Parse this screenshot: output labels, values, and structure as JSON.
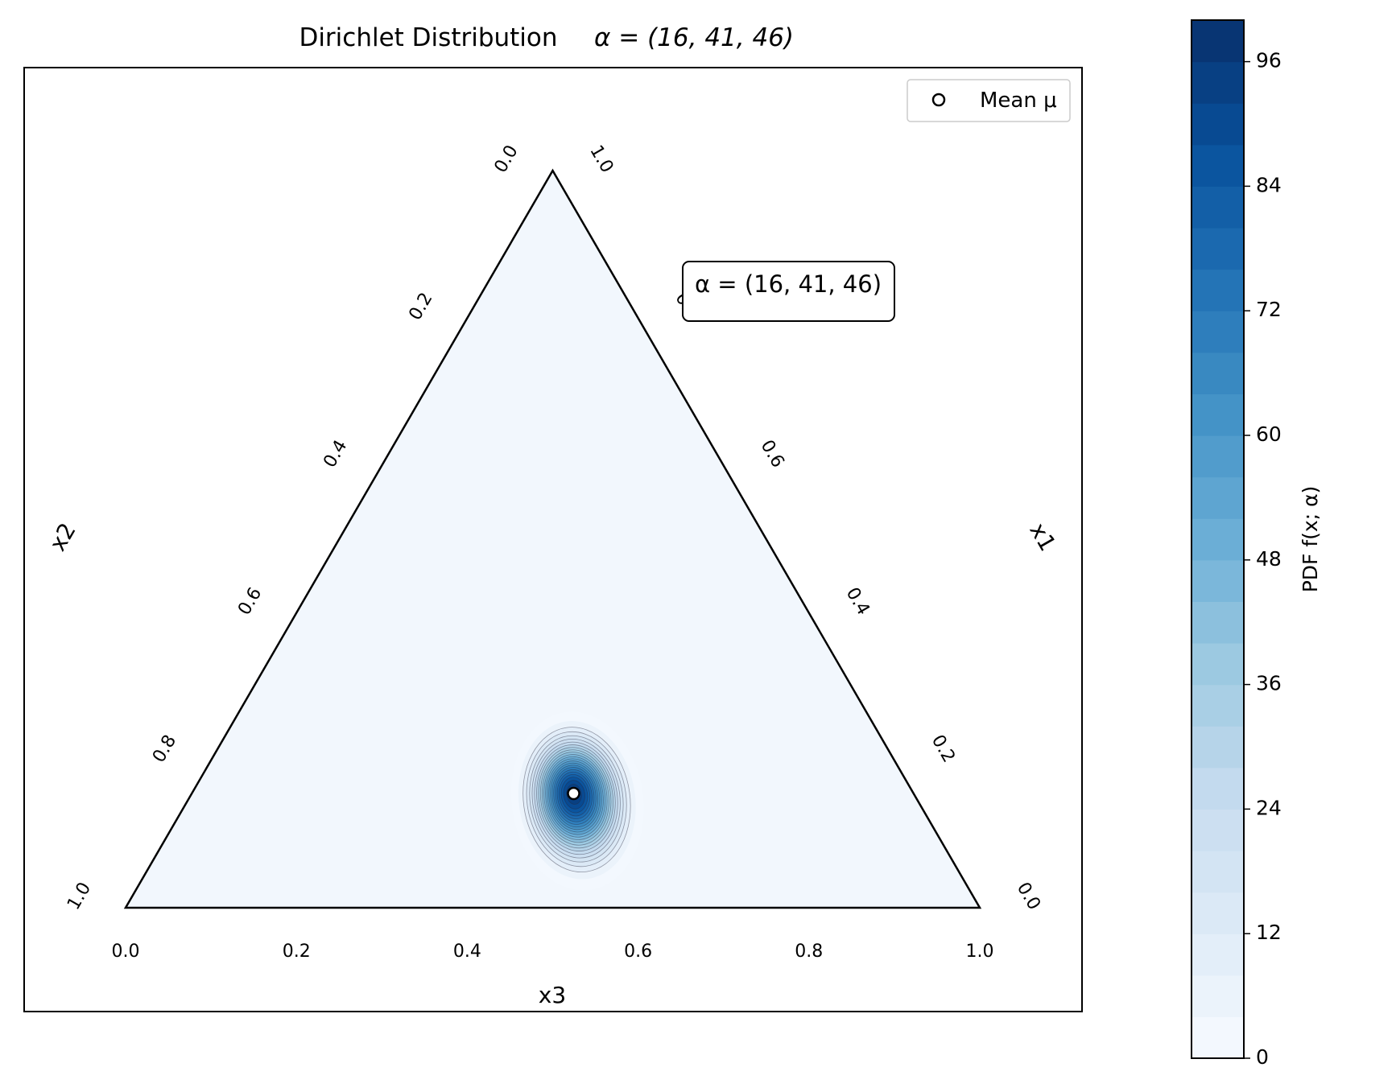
{
  "chart_data": {
    "type": "heatmap",
    "title": "Dirichlet Distribution",
    "title_math": "α = (16, 41, 46)",
    "alpha": [
      16,
      41,
      46
    ],
    "mean": [
      0.155,
      0.398,
      0.447
    ],
    "axes": {
      "bottom": {
        "label": "x3",
        "ticks": [
          "0.0",
          "0.2",
          "0.4",
          "0.6",
          "0.8",
          "1.0"
        ]
      },
      "left": {
        "label": "x2",
        "ticks": [
          "0.0",
          "0.2",
          "0.4",
          "0.6",
          "0.8",
          "1.0"
        ]
      },
      "right": {
        "label": "x1",
        "ticks": [
          "0.0",
          "0.2",
          "0.4",
          "0.6",
          "0.8",
          "1.0"
        ]
      }
    },
    "annotation": "α = (16, 41, 46)",
    "legend": {
      "label": "Mean μ",
      "position": "upper right"
    },
    "colorbar": {
      "label": "PDF f(x; α)",
      "ticks": [
        0,
        12,
        24,
        36,
        48,
        60,
        72,
        84,
        96
      ],
      "min": 0,
      "max": 100,
      "levels": 25,
      "colormap": "Blues"
    }
  },
  "colors": {
    "light": "#f2f7fd",
    "dark": "#0b306b",
    "frame": "#000000"
  }
}
